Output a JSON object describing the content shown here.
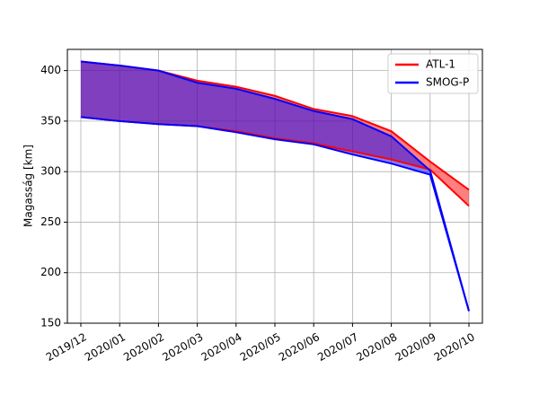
{
  "chart_data": {
    "type": "band",
    "ylabel": "Magasság [km]",
    "x": [
      "2019/12",
      "2020/01",
      "2020/02",
      "2020/03",
      "2020/04",
      "2020/05",
      "2020/06",
      "2020/07",
      "2020/08",
      "2020/09",
      "2020/10"
    ],
    "series": [
      {
        "name": "ATL-1",
        "color": "#ff0000",
        "values": [
          409,
          405,
          400,
          390,
          384,
          375,
          362,
          355,
          340,
          310,
          282
        ],
        "lower": [
          354,
          350,
          347,
          345,
          340,
          333,
          328,
          320,
          312,
          302,
          266
        ]
      },
      {
        "name": "SMOG-P",
        "color": "#0000ff",
        "values": [
          409,
          405,
          400,
          388,
          382,
          372,
          360,
          352,
          335,
          301,
          162
        ],
        "lower": [
          354,
          350,
          347,
          345,
          339,
          332,
          327,
          317,
          308,
          297,
          162
        ]
      }
    ],
    "xlim": [
      "2019/12",
      "2020/10"
    ],
    "xticks": [
      "2019/12",
      "2020/01",
      "2020/02",
      "2020/03",
      "2020/04",
      "2020/05",
      "2020/06",
      "2020/07",
      "2020/08",
      "2020/09",
      "2020/10"
    ],
    "ylim": [
      150,
      421
    ],
    "yticks": [
      150,
      200,
      250,
      300,
      350,
      400
    ],
    "grid": true,
    "legend": "upper right"
  }
}
